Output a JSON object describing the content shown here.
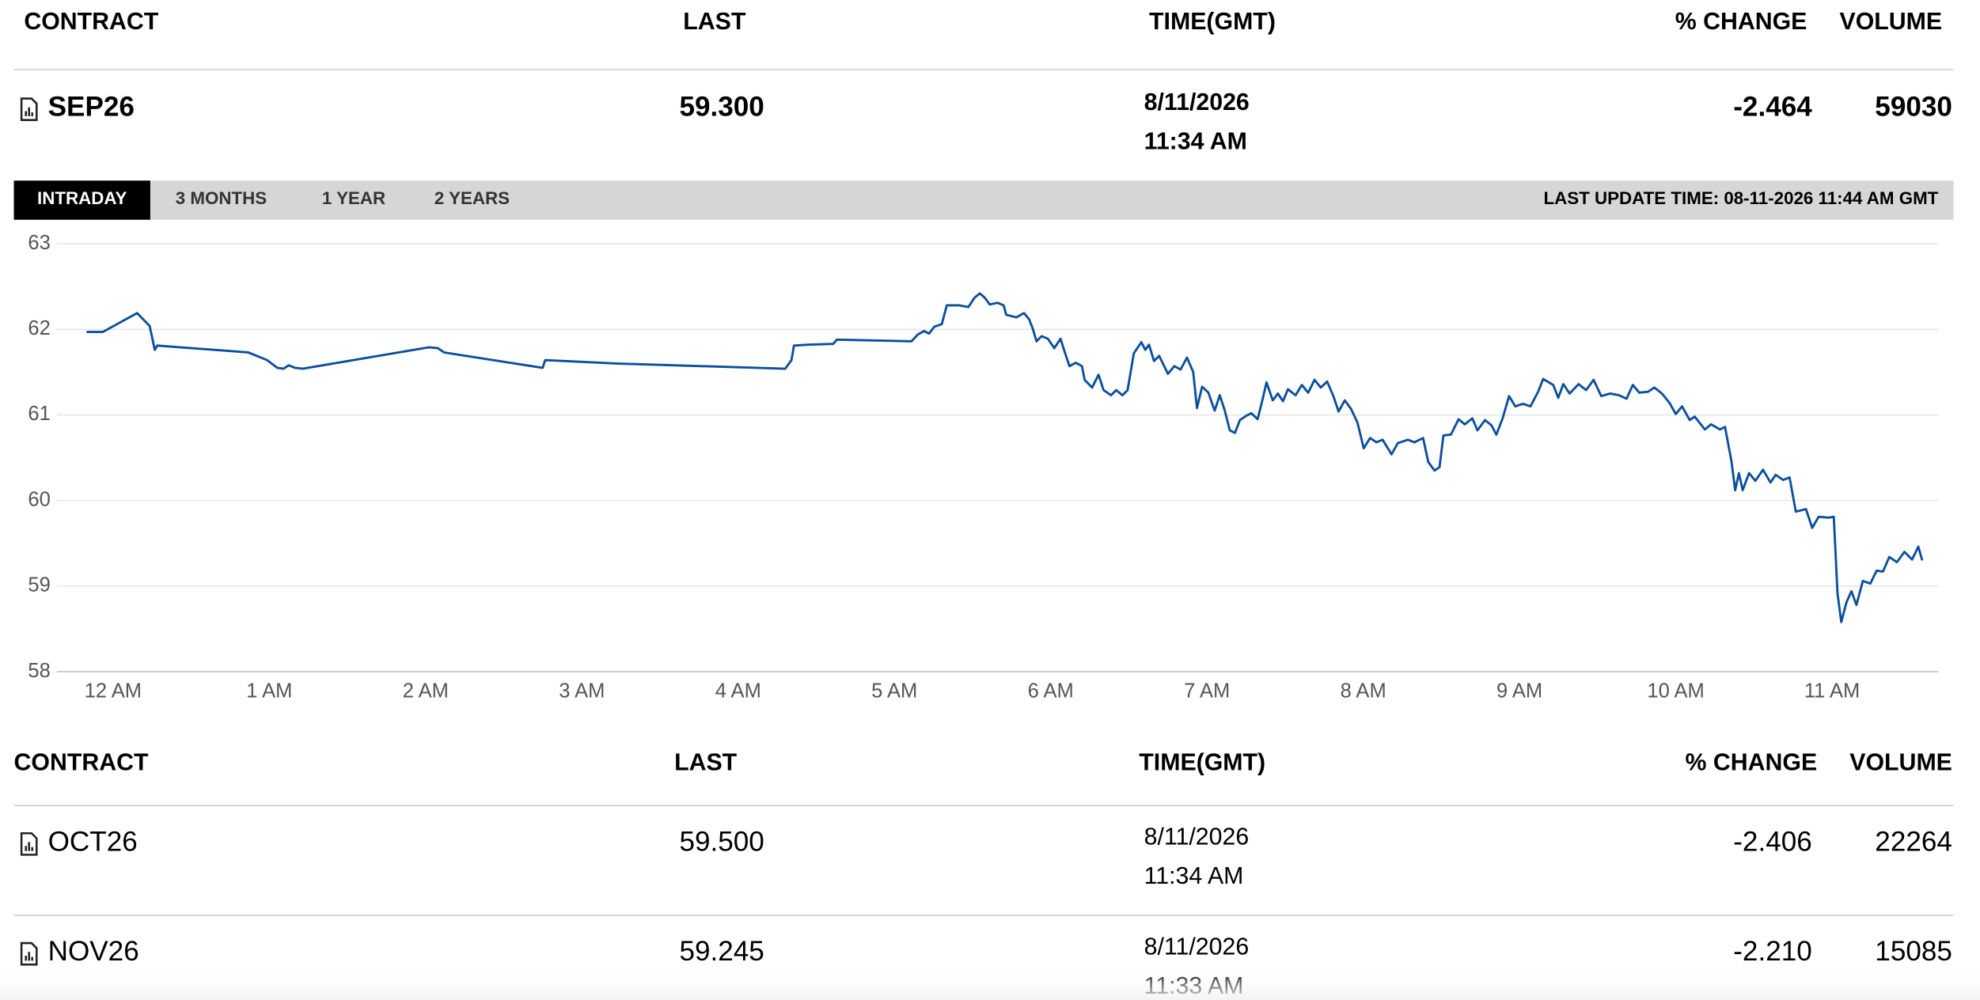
{
  "top_table": {
    "header": [
      "CONTRACT",
      "LAST",
      "TIME(GMT)",
      "% CHANGE",
      "VOLUME"
    ],
    "rows": [
      [
        "SEP26",
        "59.300",
        "8/11/2026",
        "11:34 AM",
        "-2.464",
        "59030"
      ]
    ]
  },
  "tabs": [
    "INTRADAY",
    "3 MONTHS",
    "1 YEAR",
    "2 YEARS"
  ],
  "last_update": "LAST UPDATE TIME: 08-11-2026 11:44 AM GMT",
  "chart_data": {
    "type": "line",
    "color": "#0b4f9c",
    "grid": true,
    "xlim": [
      -0.36,
      11.68
    ],
    "ylim": [
      58,
      63
    ],
    "yticks": [
      58,
      59,
      60,
      61,
      62,
      63
    ],
    "xticks": [
      {
        "value": 0,
        "label": "12 AM"
      },
      {
        "value": 1,
        "label": "1 AM"
      },
      {
        "value": 2,
        "label": "2 AM"
      },
      {
        "value": 3,
        "label": "3 AM"
      },
      {
        "value": 4,
        "label": "4 AM"
      },
      {
        "value": 5,
        "label": "5 AM"
      },
      {
        "value": 6,
        "label": "6 AM"
      },
      {
        "value": 7,
        "label": "7 AM"
      },
      {
        "value": 8,
        "label": "8 AM"
      },
      {
        "value": 9,
        "label": "9 AM"
      },
      {
        "value": 10,
        "label": "10 AM"
      },
      {
        "value": 11,
        "label": "11 AM"
      }
    ],
    "x": [
      -0.17,
      -0.065,
      0.154,
      0.234,
      0.267,
      0.283,
      0.865,
      0.986,
      1.051,
      1.091,
      1.124,
      1.164,
      1.213,
      2.021,
      2.078,
      2.118,
      2.749,
      2.765,
      3.234,
      4.301,
      4.341,
      4.357,
      4.446,
      4.608,
      4.632,
      5.109,
      5.15,
      5.19,
      5.222,
      5.255,
      5.303,
      5.335,
      5.416,
      5.473,
      5.513,
      5.546,
      5.578,
      5.61,
      5.659,
      5.699,
      5.715,
      5.78,
      5.829,
      5.861,
      5.885,
      5.909,
      5.942,
      5.982,
      6.023,
      6.063,
      6.087,
      6.12,
      6.16,
      6.2,
      6.217,
      6.265,
      6.306,
      6.338,
      6.386,
      6.419,
      6.459,
      6.492,
      6.532,
      6.58,
      6.605,
      6.629,
      6.661,
      6.694,
      6.75,
      6.791,
      6.831,
      6.872,
      6.912,
      6.936,
      6.969,
      7.009,
      7.049,
      7.082,
      7.114,
      7.146,
      7.179,
      7.211,
      7.251,
      7.284,
      7.324,
      7.357,
      7.381,
      7.421,
      7.454,
      7.486,
      7.518,
      7.567,
      7.607,
      7.648,
      7.688,
      7.728,
      7.769,
      7.809,
      7.842,
      7.882,
      7.922,
      7.963,
      8.003,
      8.044,
      8.084,
      8.124,
      8.181,
      8.221,
      8.286,
      8.327,
      8.383,
      8.416,
      8.456,
      8.488,
      8.513,
      8.561,
      8.61,
      8.65,
      8.698,
      8.731,
      8.779,
      8.82,
      8.852,
      8.892,
      8.933,
      8.973,
      9.022,
      9.07,
      9.119,
      9.151,
      9.216,
      9.248,
      9.28,
      9.321,
      9.378,
      9.426,
      9.474,
      9.523,
      9.58,
      9.636,
      9.685,
      9.725,
      9.766,
      9.822,
      9.863,
      9.911,
      9.96,
      10.0,
      10.04,
      10.089,
      10.121,
      10.186,
      10.226,
      10.283,
      10.315,
      10.356,
      10.38,
      10.404,
      10.428,
      10.469,
      10.509,
      10.558,
      10.606,
      10.639,
      10.687,
      10.728,
      10.768,
      10.833,
      10.873,
      10.914,
      10.978,
      11.011,
      11.035,
      11.059,
      11.092,
      11.124,
      11.156,
      11.197,
      11.245,
      11.285,
      11.326,
      11.366,
      11.415,
      11.463,
      11.512,
      11.552,
      11.577
    ],
    "values": [
      61.97,
      61.97,
      62.19,
      62.04,
      61.76,
      61.81,
      61.73,
      61.64,
      61.55,
      61.54,
      61.58,
      61.55,
      61.54,
      61.79,
      61.78,
      61.73,
      61.55,
      61.64,
      61.6,
      61.54,
      61.64,
      61.81,
      61.82,
      61.83,
      61.88,
      61.86,
      61.94,
      61.98,
      61.95,
      62.03,
      62.06,
      62.28,
      62.28,
      62.26,
      62.37,
      62.42,
      62.37,
      62.29,
      62.31,
      62.28,
      62.17,
      62.14,
      62.19,
      62.12,
      62.01,
      61.86,
      61.92,
      61.89,
      61.78,
      61.89,
      61.75,
      61.57,
      61.61,
      61.57,
      61.41,
      61.32,
      61.47,
      61.29,
      61.23,
      61.29,
      61.23,
      61.29,
      61.72,
      61.85,
      61.76,
      61.82,
      61.63,
      61.69,
      61.48,
      61.57,
      61.53,
      61.67,
      61.5,
      61.08,
      61.33,
      61.26,
      61.05,
      61.23,
      61.05,
      60.82,
      60.79,
      60.94,
      60.99,
      61.02,
      60.95,
      61.19,
      61.38,
      61.17,
      61.25,
      61.16,
      61.3,
      61.23,
      61.35,
      61.26,
      61.41,
      61.32,
      61.39,
      61.22,
      61.04,
      61.17,
      61.07,
      60.91,
      60.61,
      60.73,
      60.68,
      60.71,
      60.54,
      60.67,
      60.71,
      60.68,
      60.73,
      60.45,
      60.35,
      60.39,
      60.76,
      60.77,
      60.95,
      60.89,
      60.96,
      60.82,
      60.94,
      60.88,
      60.77,
      60.96,
      61.22,
      61.1,
      61.13,
      61.1,
      61.27,
      61.42,
      61.35,
      61.2,
      61.36,
      61.25,
      61.36,
      61.29,
      61.41,
      61.22,
      61.25,
      61.23,
      61.19,
      61.35,
      61.26,
      61.27,
      61.32,
      61.25,
      61.14,
      61.01,
      61.1,
      60.94,
      60.98,
      60.83,
      60.89,
      60.83,
      60.86,
      60.46,
      60.12,
      60.32,
      60.12,
      60.32,
      60.23,
      60.36,
      60.21,
      60.3,
      60.24,
      60.27,
      59.87,
      59.9,
      59.68,
      59.81,
      59.8,
      59.81,
      58.91,
      58.58,
      58.81,
      58.94,
      58.78,
      59.06,
      59.03,
      59.18,
      59.17,
      59.34,
      59.28,
      59.4,
      59.31,
      59.46,
      59.3
    ]
  },
  "bottom_table": {
    "header": [
      "CONTRACT",
      "LAST",
      "TIME(GMT)",
      "% CHANGE",
      "VOLUME"
    ],
    "rows": [
      [
        "OCT26",
        "59.500",
        "8/11/2026",
        "11:34 AM",
        "-2.406",
        "22264"
      ],
      [
        "NOV26",
        "59.245",
        "8/11/2026",
        "11:33 AM",
        "-2.210",
        "15085"
      ]
    ]
  }
}
